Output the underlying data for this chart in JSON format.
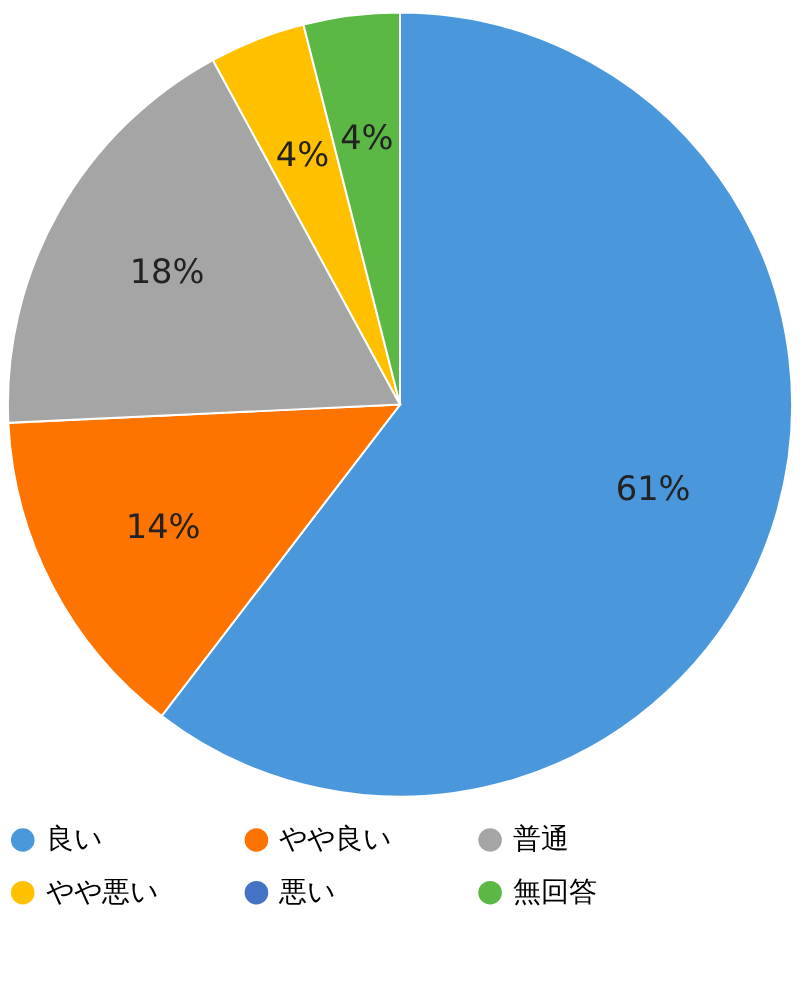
{
  "chart_data": {
    "type": "pie",
    "categories": [
      "良い",
      "やや良い",
      "普通",
      "やや悪い",
      "悪い",
      "無回答"
    ],
    "values": [
      61,
      14,
      18,
      4,
      0,
      4
    ],
    "colors": [
      "#4a98db",
      "#ff7300",
      "#a5a5a5",
      "#ffc000",
      "#4472c4",
      "#5bb844"
    ],
    "value_labels": [
      "61%",
      "14%",
      "18%",
      "4%",
      null,
      "4%"
    ],
    "legend": "bottom"
  }
}
